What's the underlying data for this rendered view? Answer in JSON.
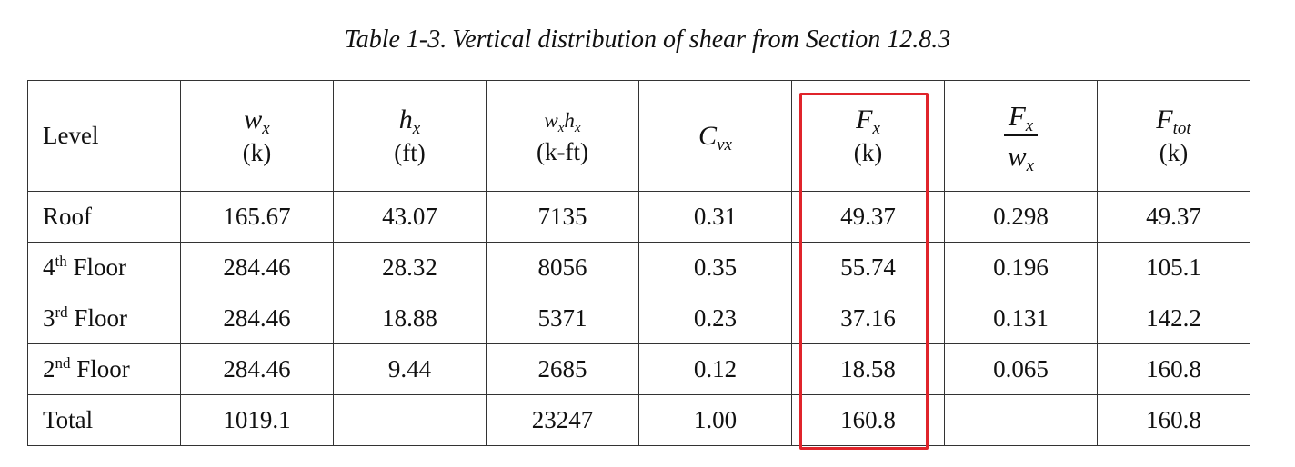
{
  "caption": {
    "label": "Table 1-3.",
    "text": "Vertical distribution of shear from Section 12.8.3"
  },
  "columns": [
    {
      "key": "level",
      "label": "Level"
    },
    {
      "key": "wx",
      "symbol": "w",
      "sub": "x",
      "unit": "(k)"
    },
    {
      "key": "hx",
      "symbol": "h",
      "sub": "x",
      "unit": "(ft)"
    },
    {
      "key": "wxhx",
      "symbol1": "w",
      "sub1": "x",
      "symbol2": "h",
      "sub2": "x",
      "unit": "(k-ft)"
    },
    {
      "key": "cvx",
      "symbol": "C",
      "sub": "vx"
    },
    {
      "key": "fx",
      "symbol": "F",
      "sub": "x",
      "unit": "(k)"
    },
    {
      "key": "fx_wx",
      "num_symbol": "F",
      "num_sub": "x",
      "den_symbol": "w",
      "den_sub": "x"
    },
    {
      "key": "ftot",
      "symbol": "F",
      "sub": "tot",
      "unit": "(k)"
    }
  ],
  "rows": [
    {
      "level": "Roof",
      "level_sup": "",
      "level_suffix": "",
      "wx": "165.67",
      "hx": "43.07",
      "wxhx": "7135",
      "cvx": "0.31",
      "fx": "49.37",
      "fx_wx": "0.298",
      "ftot": "49.37"
    },
    {
      "level": "4",
      "level_sup": "th",
      "level_suffix": " Floor",
      "wx": "284.46",
      "hx": "28.32",
      "wxhx": "8056",
      "cvx": "0.35",
      "fx": "55.74",
      "fx_wx": "0.196",
      "ftot": "105.1"
    },
    {
      "level": "3",
      "level_sup": "rd",
      "level_suffix": " Floor",
      "wx": "284.46",
      "hx": "18.88",
      "wxhx": "5371",
      "cvx": "0.23",
      "fx": "37.16",
      "fx_wx": "0.131",
      "ftot": "142.2"
    },
    {
      "level": "2",
      "level_sup": "nd",
      "level_suffix": " Floor",
      "wx": "284.46",
      "hx": "9.44",
      "wxhx": "2685",
      "cvx": "0.12",
      "fx": "18.58",
      "fx_wx": "0.065",
      "ftot": "160.8"
    },
    {
      "level": "Total",
      "level_sup": "",
      "level_suffix": "",
      "wx": "1019.1",
      "hx": "",
      "wxhx": "23247",
      "cvx": "1.00",
      "fx": "160.8",
      "fx_wx": "",
      "ftot": "160.8"
    }
  ],
  "highlight": {
    "column": "fx",
    "color": "#e0242b"
  }
}
